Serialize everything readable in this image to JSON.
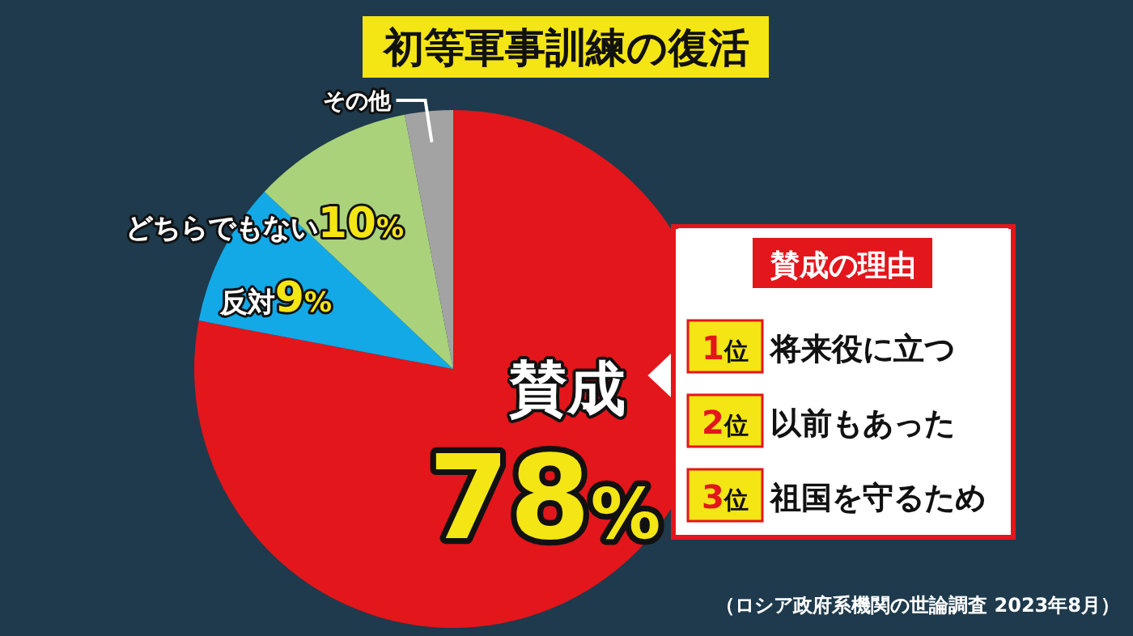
{
  "chart_data": {
    "type": "pie",
    "title": "初等軍事訓練の復活",
    "categories": [
      "賛成",
      "反対",
      "どちらでもない",
      "その他"
    ],
    "values": [
      78,
      9,
      10,
      3
    ],
    "colors": [
      "#e3161b",
      "#12a9e6",
      "#a9d27b",
      "#a3a3a3"
    ],
    "value_labels": [
      "78%",
      "9%",
      "10%",
      null
    ],
    "annotations": [
      "賛成の理由",
      "1位 将来役に立つ",
      "2位 以前もあった",
      "3位 祖国を守るため",
      "（ロシア政府系機関の世論調査 2023年8月）"
    ]
  }
}
